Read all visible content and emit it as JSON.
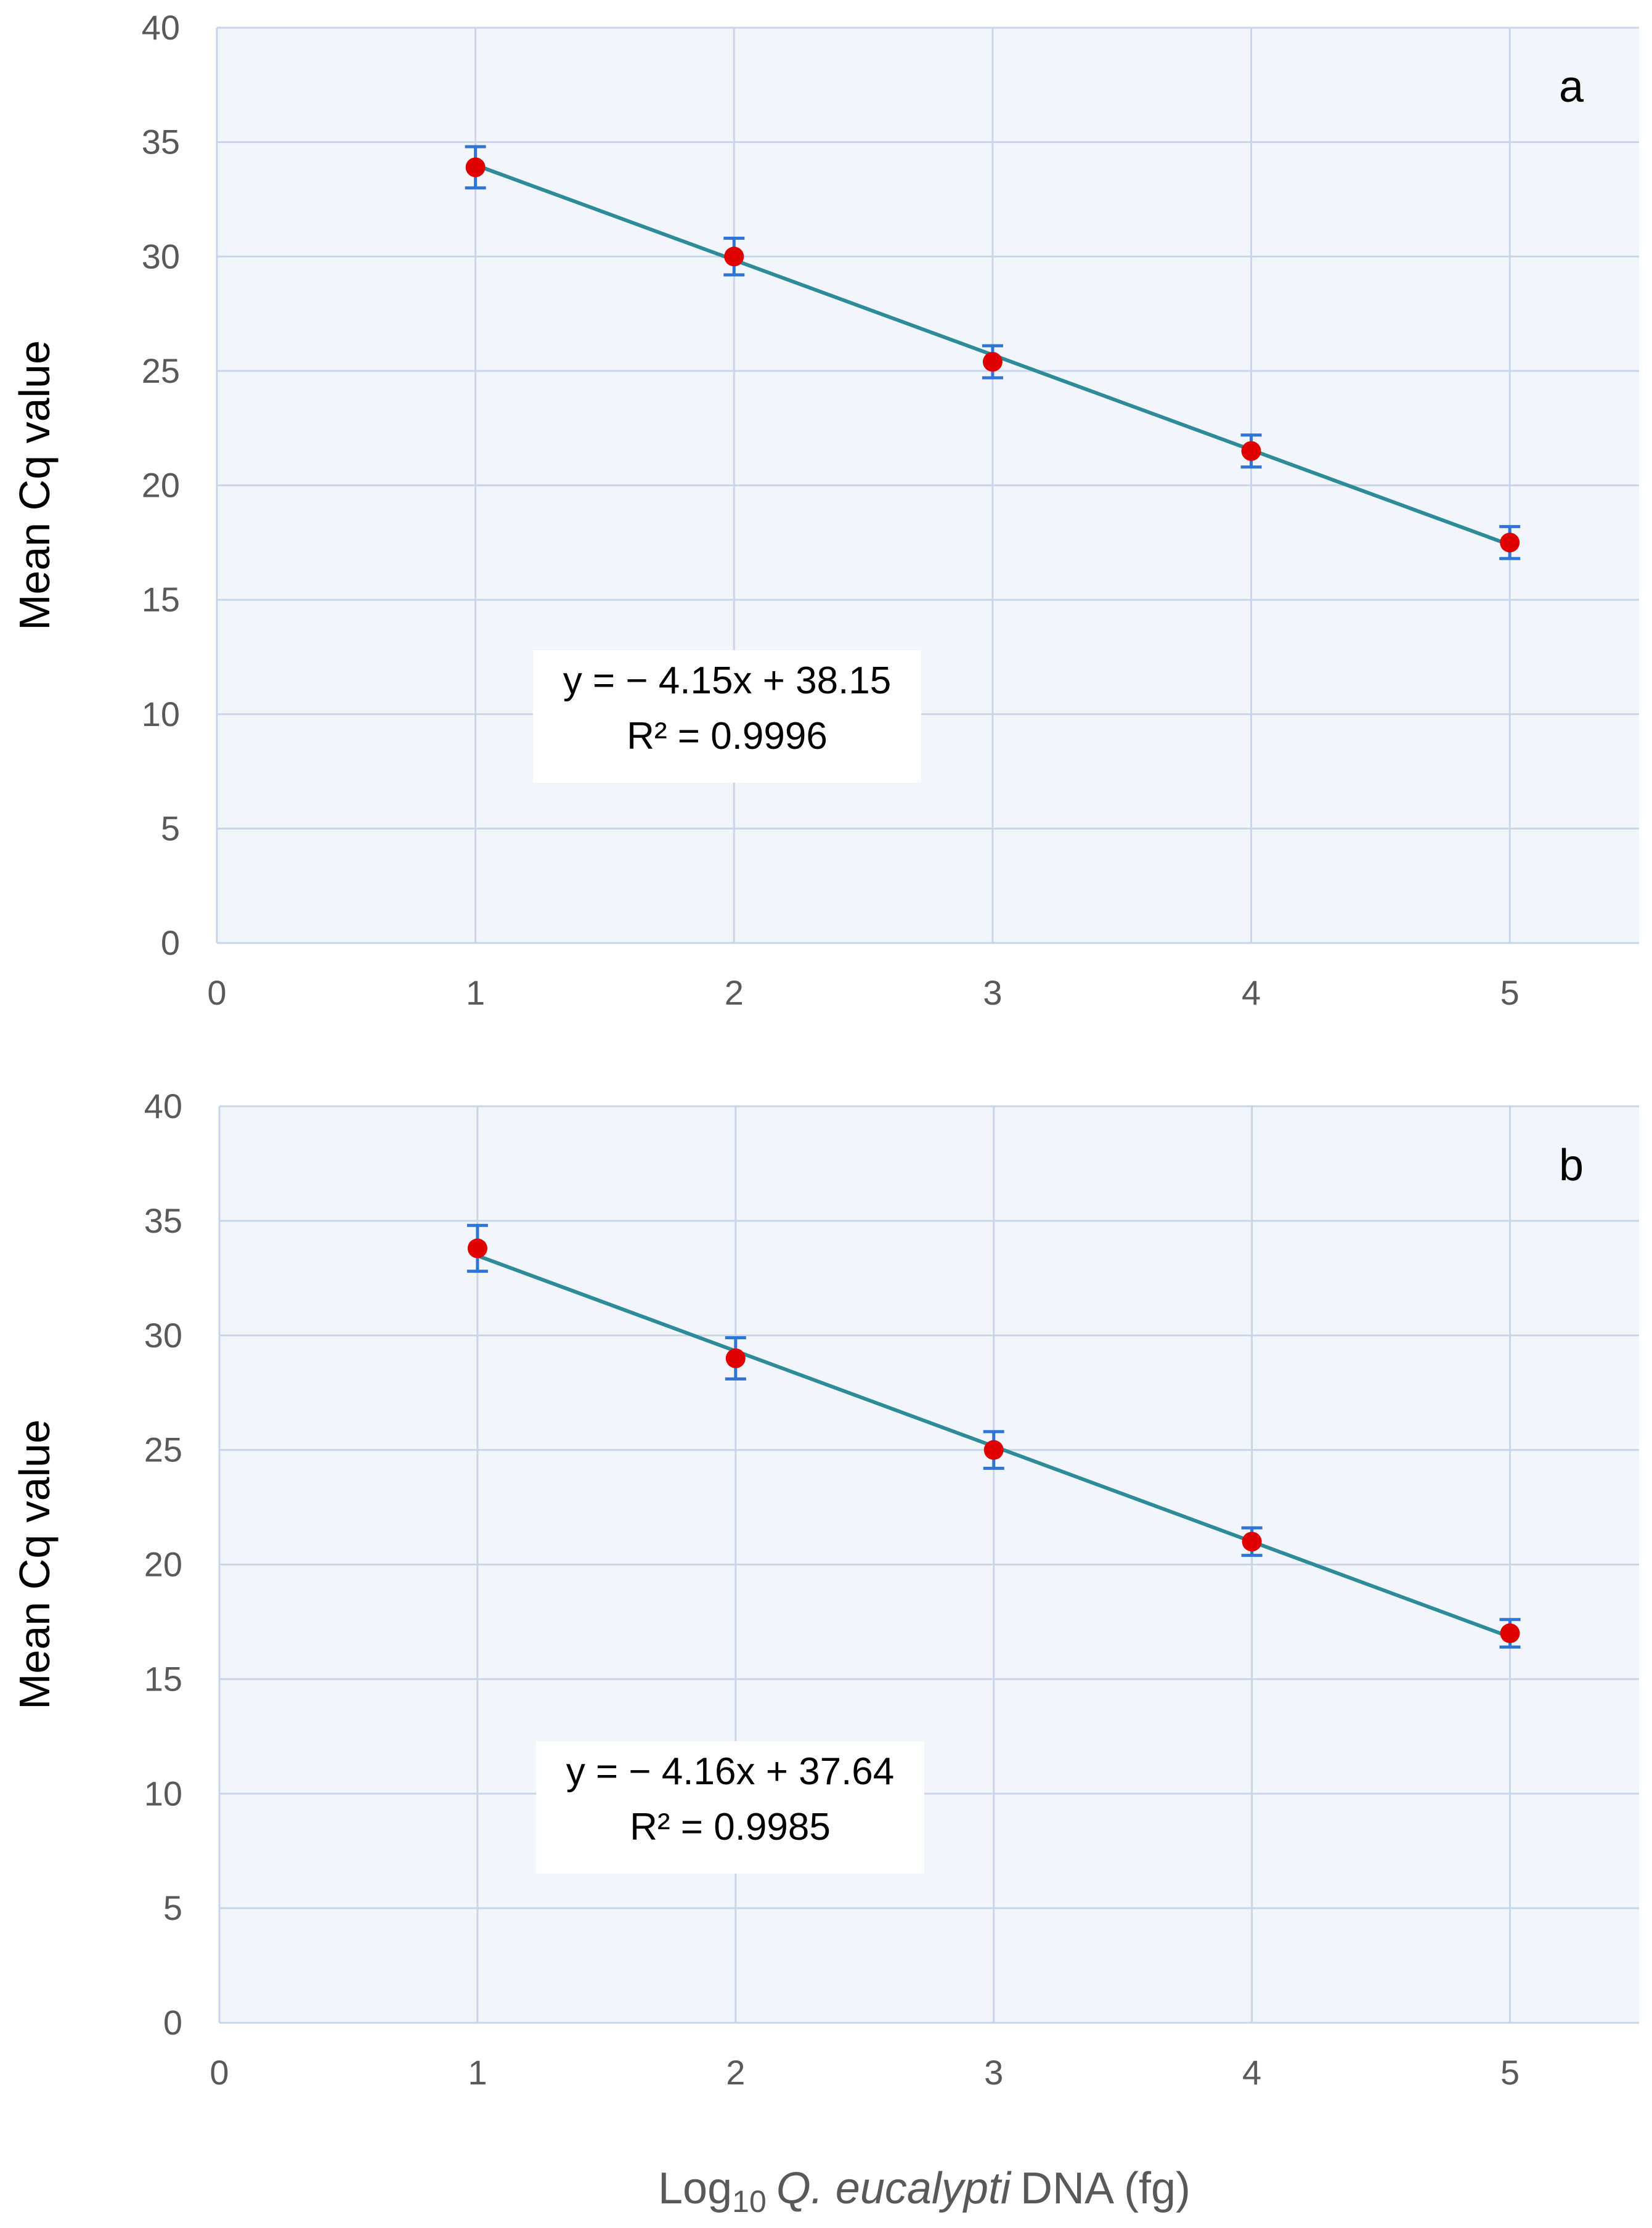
{
  "chart_data": [
    {
      "type": "scatter",
      "panel_label": "a",
      "x": [
        1,
        2,
        3,
        4,
        5
      ],
      "y": [
        33.9,
        30.0,
        25.4,
        21.5,
        17.5
      ],
      "error": [
        0.9,
        0.8,
        0.7,
        0.7,
        0.7
      ],
      "trendline": {
        "slope": -4.15,
        "intercept": 38.15
      },
      "equation": "y = − 4.15x + 38.15",
      "r_squared": "R² = 0.9996",
      "ylabel": "Mean Cq value",
      "xlim": [
        0,
        5.5
      ],
      "ylim": [
        0,
        40
      ],
      "xticks": [
        "0",
        "1",
        "2",
        "3",
        "4",
        "5"
      ],
      "yticks": [
        "0",
        "5",
        "10",
        "15",
        "20",
        "25",
        "30",
        "35",
        "40"
      ],
      "grid": true,
      "colors": {
        "point": "#E00000",
        "error_bar": "#2E75D6",
        "trendline": "#2E8B9A",
        "grid": "#C9D5E8",
        "plot_bg": "#F2F6FB"
      }
    },
    {
      "type": "scatter",
      "panel_label": "b",
      "x": [
        1,
        2,
        3,
        4,
        5
      ],
      "y": [
        33.8,
        29.0,
        25.0,
        21.0,
        17.0
      ],
      "error": [
        1.0,
        0.9,
        0.8,
        0.6,
        0.6
      ],
      "trendline": {
        "slope": -4.16,
        "intercept": 37.64
      },
      "equation": "y = − 4.16x + 37.64",
      "r_squared": "R² = 0.9985",
      "ylabel": "Mean Cq value",
      "xlim": [
        0,
        5.5
      ],
      "ylim": [
        0,
        40
      ],
      "xticks": [
        "0",
        "1",
        "2",
        "3",
        "4",
        "5"
      ],
      "yticks": [
        "0",
        "5",
        "10",
        "15",
        "20",
        "25",
        "30",
        "35",
        "40"
      ],
      "grid": true,
      "colors": {
        "point": "#E00000",
        "error_bar": "#2E75D6",
        "trendline": "#2E8B9A",
        "grid": "#C9D5E8",
        "plot_bg": "#F2F6FB"
      }
    }
  ],
  "xlabel": {
    "prefix": "Log",
    "subscript": "10",
    "species": "Q. eucalypti",
    "suffix": "DNA (fg)"
  }
}
